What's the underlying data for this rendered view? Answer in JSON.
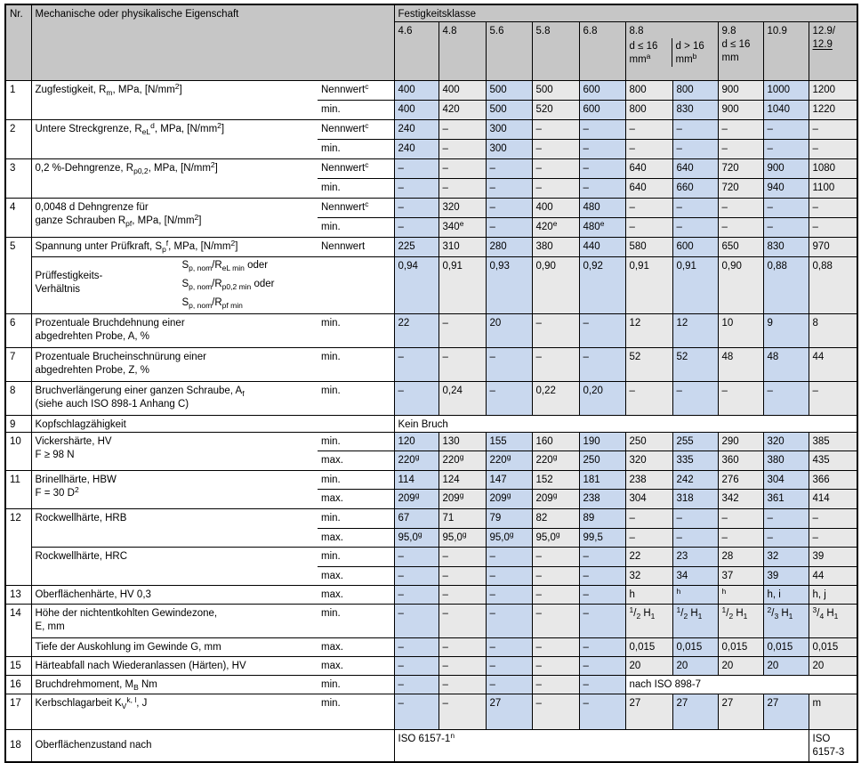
{
  "colors": {
    "header_bg": "#c6c6c6",
    "column_blue": "#c9d8ee",
    "column_gray": "#e8e8e8"
  },
  "header": {
    "nr": "Nr.",
    "property": "Mechanische oder physikalische Eigenschaft",
    "group": "Festigkeitsklasse",
    "c46": "4.6",
    "c48": "4.8",
    "c56": "5.6",
    "c58": "5.8",
    "c68": "6.8",
    "c88": "8.8",
    "c88a": "d ≤ 16<br>mm<sup>a</sup>",
    "c88b": "d > 16<br>mm<sup>b</sup>",
    "c98": "9.8<br>d ≤ 16<br>mm",
    "c109": "10.9",
    "c129": "12.9/<br><u>12.9</u>"
  },
  "sub": {
    "nennwert_c": "Nennwert<sup>c</sup>",
    "nennwert": "Nennwert",
    "min": "min.",
    "max": "max."
  },
  "rows": {
    "r1": {
      "nr": "1",
      "label": "Zugfestigkeit, R<sub>m</sub>, MPa, [N/mm<sup>2</sup>]",
      "a": {
        "v": [
          "400",
          "400",
          "500",
          "500",
          "600",
          "800",
          "800",
          "900",
          "1000",
          "1200"
        ]
      },
      "b": {
        "v": [
          "400",
          "420",
          "500",
          "520",
          "600",
          "800",
          "830",
          "900",
          "1040",
          "1220"
        ]
      }
    },
    "r2": {
      "nr": "2",
      "label": "Untere Streckgrenze, R<sub>eL</sub><sup>d</sup>, MPa, [N/mm<sup>2</sup>]",
      "a": {
        "v": [
          "240",
          "–",
          "300",
          "–",
          "–",
          "–",
          "–",
          "–",
          "–",
          "–"
        ]
      },
      "b": {
        "v": [
          "240",
          "–",
          "300",
          "–",
          "–",
          "–",
          "–",
          "–",
          "–",
          "–"
        ]
      }
    },
    "r3": {
      "nr": "3",
      "label": "0,2 %-Dehngrenze, R<sub>p0,2</sub>, MPa, [N/mm<sup>2</sup>]",
      "a": {
        "v": [
          "–",
          "–",
          "–",
          "–",
          "–",
          "640",
          "640",
          "720",
          "900",
          "1080"
        ]
      },
      "b": {
        "v": [
          "–",
          "–",
          "–",
          "–",
          "–",
          "640",
          "660",
          "720",
          "940",
          "1100"
        ]
      }
    },
    "r4": {
      "nr": "4",
      "label": "0,0048 d Dehngrenze für<br>ganze Schrauben R<sub>pf</sub>, MPa, [N/mm<sup>2</sup>]",
      "a": {
        "v": [
          "–",
          "320",
          "–",
          "400",
          "480",
          "–",
          "–",
          "–",
          "–",
          "–"
        ]
      },
      "b": {
        "v": [
          "–",
          "340<sup>e</sup>",
          "–",
          "420<sup>e</sup>",
          "480<sup>e</sup>",
          "–",
          "–",
          "–",
          "–",
          "–"
        ]
      }
    },
    "r5": {
      "nr": "5",
      "label": "Spannung unter Prüfkraft, S<sub>p</sub><sup>f</sup>, MPa, [N/mm<sup>2</sup>]",
      "a": {
        "v": [
          "225",
          "310",
          "280",
          "380",
          "440",
          "580",
          "600",
          "650",
          "830",
          "970"
        ]
      },
      "ratio_label": "Prüffestigkeits-<br>Verhältnis",
      "f1": "S<sub>p, nom</sub>/R<sub>eL min</sub> oder",
      "f2": "S<sub>p, nom</sub>/R<sub>p0,2 min</sub> oder",
      "f3": "S<sub>p, nom</sub>/R<sub>pf min</sub>",
      "ratio_v": [
        "0,94",
        "0,91",
        "0,93",
        "0,90",
        "0,92",
        "0,91",
        "0,91",
        "0,90",
        "0,88",
        "0,88"
      ]
    },
    "r6": {
      "nr": "6",
      "label": "Prozentuale Bruchdehnung einer<br>abgedrehten Probe, A, %",
      "v": [
        "22",
        "–",
        "20",
        "–",
        "–",
        "12",
        "12",
        "10",
        "9",
        "8"
      ]
    },
    "r7": {
      "nr": "7",
      "label": "Prozentuale Brucheinschnürung einer<br>abgedrehten Probe, Z, %",
      "v": [
        "–",
        "–",
        "–",
        "–",
        "–",
        "52",
        "52",
        "48",
        "48",
        "44"
      ]
    },
    "r8": {
      "nr": "8",
      "label": "Bruchverlängerung einer ganzen Schraube, A<sub>f</sub><br>(siehe auch ISO 898-1 Anhang C)",
      "v": [
        "–",
        "0,24",
        "–",
        "0,22",
        "0,20",
        "–",
        "–",
        "–",
        "–",
        "–"
      ]
    },
    "r9": {
      "nr": "9",
      "label": "Kopfschlagzähigkeit",
      "value": "Kein Bruch"
    },
    "r10": {
      "nr": "10",
      "label": "Vickershärte, HV<br>F ≥ 98 N",
      "a": {
        "v": [
          "120",
          "130",
          "155",
          "160",
          "190",
          "250",
          "255",
          "290",
          "320",
          "385"
        ]
      },
      "b": {
        "v": [
          "220<sup>g</sup>",
          "220<sup>g</sup>",
          "220<sup>g</sup>",
          "220<sup>g</sup>",
          "250",
          "320",
          "335",
          "360",
          "380",
          "435"
        ]
      }
    },
    "r11": {
      "nr": "11",
      "label": "Brinellhärte, HBW<br>F = 30 D<sup>2</sup>",
      "a": {
        "v": [
          "114",
          "124",
          "147",
          "152",
          "181",
          "238",
          "242",
          "276",
          "304",
          "366"
        ]
      },
      "b": {
        "v": [
          "209<sup>g</sup>",
          "209<sup>g</sup>",
          "209<sup>g</sup>",
          "209<sup>g</sup>",
          "238",
          "304",
          "318",
          "342",
          "361",
          "414"
        ]
      }
    },
    "r12": {
      "nr": "12",
      "hrb_label": "Rockwellhärte, HRB",
      "hrb_min": [
        "67",
        "71",
        "79",
        "82",
        "89",
        "–",
        "–",
        "–",
        "–",
        "–"
      ],
      "hrb_max": [
        "95,0<sup>g</sup>",
        "95,0<sup>g</sup>",
        "95,0<sup>g</sup>",
        "95,0<sup>g</sup>",
        "99,5",
        "–",
        "–",
        "–",
        "–",
        "–"
      ],
      "hrc_label": "Rockwellhärte, HRC",
      "hrc_min": [
        "–",
        "–",
        "–",
        "–",
        "–",
        "22",
        "23",
        "28",
        "32",
        "39"
      ],
      "hrc_max": [
        "–",
        "–",
        "–",
        "–",
        "–",
        "32",
        "34",
        "37",
        "39",
        "44"
      ]
    },
    "r13": {
      "nr": "13",
      "label": "Oberflächenhärte, HV 0,3",
      "v": [
        "–",
        "–",
        "–",
        "–",
        "–",
        "h",
        "<sup>h</sup>",
        "<sup>h</sup>",
        "h, i",
        "h, j"
      ]
    },
    "r14": {
      "nr": "14",
      "label_a": "Höhe der nichtentkohlten Gewindezone,<br>E, mm",
      "va": [
        "–",
        "–",
        "–",
        "–",
        "–",
        "<sup>1</sup>/<sub>2</sub> H<sub>1</sub>",
        "<sup>1</sup>/<sub>2</sub> H<sub>1</sub>",
        "<sup>1</sup>/<sub>2</sub> H<sub>1</sub>",
        "<sup>2</sup>/<sub>3</sub> H<sub>1</sub>",
        "<sup>3</sup>/<sub>4</sub> H<sub>1</sub>"
      ],
      "label_b": "Tiefe der Auskohlung im Gewinde G, mm",
      "vb": [
        "–",
        "–",
        "–",
        "–",
        "–",
        "0,015",
        "0,015",
        "0,015",
        "0,015",
        "0,015"
      ]
    },
    "r15": {
      "nr": "15",
      "label": "Härteabfall nach Wiederanlassen (Härten), HV",
      "v": [
        "–",
        "–",
        "–",
        "–",
        "–",
        "20",
        "20",
        "20",
        "20",
        "20"
      ]
    },
    "r16": {
      "nr": "16",
      "label": "Bruchdrehmoment, M<sub>B</sub> Nm",
      "v": [
        "–",
        "–",
        "–",
        "–",
        "–"
      ],
      "span_value": "nach ISO 898-7"
    },
    "r17": {
      "nr": "17",
      "label": "Kerbschlagarbeit K<sub>V</sub><sup>k, l</sup>, J",
      "v": [
        "–",
        "–",
        "27",
        "–",
        "–",
        "27",
        "27",
        "27",
        "27",
        "m"
      ]
    },
    "r18": {
      "nr": "18",
      "label": "Oberflächenzustand nach",
      "value_main": "ISO 6157-1<sup>n</sup>",
      "value_last": "ISO<br>6157-3"
    }
  }
}
